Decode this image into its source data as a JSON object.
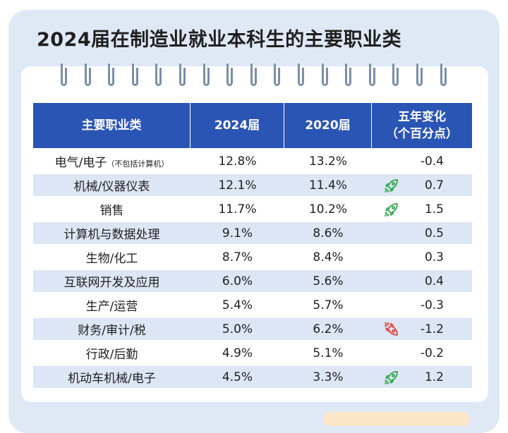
{
  "title": "2024届在制造业就业本科生的主要职业类",
  "headers": {
    "occupation": "主要职业类",
    "y2024": "2024届",
    "y2020": "2020届",
    "change_line1": "五年变化",
    "change_line2": "（个百分点）"
  },
  "rows": [
    {
      "name": "电气/电子",
      "note": "（不包括计算机）",
      "y2024": "12.8%",
      "y2020": "13.2%",
      "change": "-0.4",
      "icon": "none"
    },
    {
      "name": "机械/仪器仪表",
      "note": "",
      "y2024": "12.1%",
      "y2020": "11.4%",
      "change": "0.7",
      "icon": "rocket-up-icon"
    },
    {
      "name": "销售",
      "note": "",
      "y2024": "11.7%",
      "y2020": "10.2%",
      "change": "1.5",
      "icon": "rocket-up-icon"
    },
    {
      "name": "计算机与数据处理",
      "note": "",
      "y2024": "9.1%",
      "y2020": "8.6%",
      "change": "0.5",
      "icon": "none"
    },
    {
      "name": "生物/化工",
      "note": "",
      "y2024": "8.7%",
      "y2020": "8.4%",
      "change": "0.3",
      "icon": "none"
    },
    {
      "name": "互联网开发及应用",
      "note": "",
      "y2024": "6.0%",
      "y2020": "5.6%",
      "change": "0.4",
      "icon": "none"
    },
    {
      "name": "生产/运营",
      "note": "",
      "y2024": "5.4%",
      "y2020": "5.7%",
      "change": "-0.3",
      "icon": "none"
    },
    {
      "name": "财务/审计/税",
      "note": "",
      "y2024": "5.0%",
      "y2020": "6.2%",
      "change": "-1.2",
      "icon": "rocket-down-icon"
    },
    {
      "name": "行政/后勤",
      "note": "",
      "y2024": "4.9%",
      "y2020": "5.1%",
      "change": "-0.2",
      "icon": "none"
    },
    {
      "name": "机动车机械/电子",
      "note": "",
      "y2024": "4.5%",
      "y2020": "3.3%",
      "change": "1.2",
      "icon": "rocket-up-icon"
    }
  ],
  "colors": {
    "header_bg": "#2a55b5",
    "row_shade": "#dde6f4",
    "rocket_up": "#2fa84f",
    "rocket_down": "#e04343"
  }
}
